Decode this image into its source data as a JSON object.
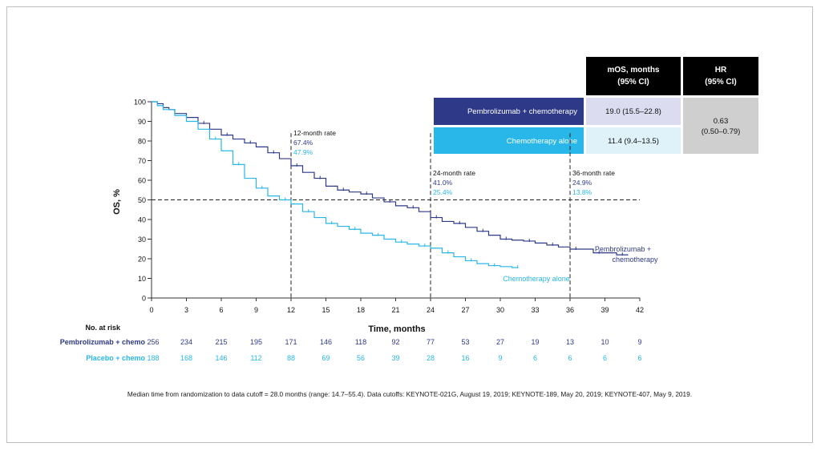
{
  "chart_data": {
    "type": "line",
    "title": "",
    "xlabel": "Time, months",
    "ylabel": "OS, %",
    "xlim": [
      0,
      42
    ],
    "ylim": [
      0,
      100
    ],
    "x_ticks": [
      "0",
      "3",
      "6",
      "9",
      "12",
      "15",
      "18",
      "21",
      "24",
      "27",
      "30",
      "33",
      "36",
      "39",
      "42"
    ],
    "y_ticks": [
      "0",
      "10",
      "20",
      "30",
      "40",
      "50",
      "60",
      "70",
      "80",
      "90",
      "100"
    ],
    "reference_line_y": 50,
    "colors": {
      "pembro": "#2e3a87",
      "chemo": "#29b6e8",
      "reference": "#000000"
    },
    "series": [
      {
        "name": "Pembrolizumab + chemotherapy",
        "label_lines": [
          "Pembrolizumab +",
          "chemotherapy"
        ],
        "color": "#2e3a87",
        "x": [
          0,
          0.5,
          1,
          1.5,
          2,
          3,
          4,
          5,
          6,
          7,
          8,
          9,
          10,
          11,
          12,
          13,
          14,
          15,
          16,
          17,
          18,
          19,
          20,
          21,
          22,
          23,
          24,
          25,
          26,
          27,
          28,
          29,
          30,
          31,
          32,
          33,
          34,
          35,
          36,
          37,
          38,
          39,
          40,
          41
        ],
        "y": [
          100,
          99,
          97,
          96,
          94,
          92,
          89,
          86,
          83,
          81,
          79,
          77,
          74,
          71,
          67.4,
          64,
          61,
          57,
          55,
          54,
          53,
          51,
          49,
          47,
          46,
          44,
          41,
          39,
          38,
          36,
          34,
          32,
          30,
          29.5,
          29,
          28,
          27,
          26,
          24.9,
          24.9,
          23,
          23,
          22,
          22
        ]
      },
      {
        "name": "Chemotherapy alone",
        "label_lines": [
          "Chemotherapy alone"
        ],
        "color": "#29b6e8",
        "x": [
          0,
          0.5,
          1,
          2,
          3,
          4,
          5,
          6,
          7,
          8,
          9,
          10,
          11,
          12,
          13,
          14,
          15,
          16,
          17,
          18,
          19,
          20,
          21,
          22,
          23,
          24,
          25,
          26,
          27,
          28,
          29,
          30,
          31,
          31.5
        ],
        "y": [
          100,
          98,
          96,
          93,
          90,
          86,
          81,
          75,
          68,
          61,
          56,
          52,
          50,
          47.9,
          44,
          41,
          38,
          36.5,
          35,
          33,
          32,
          30,
          28.5,
          27.5,
          26.5,
          25.4,
          23,
          21,
          19,
          17.5,
          16.5,
          16,
          15.5,
          15.5
        ]
      }
    ],
    "rate_annotations": [
      {
        "month": 12,
        "label": "12-month rate",
        "pembro": "67.4%",
        "chemo": "47.9%"
      },
      {
        "month": 24,
        "label": "24-month rate",
        "pembro": "41.0%",
        "chemo": "25.4%"
      },
      {
        "month": 36,
        "label": "36-month rate",
        "pembro": "24.9%",
        "chemo": "13.8%"
      }
    ],
    "legend_placement": "top-right table",
    "grid": false
  },
  "summary_table": {
    "col1_header": [
      "mOS, months",
      "(95% CI)"
    ],
    "col2_header": [
      "HR",
      "(95% CI)"
    ],
    "rows": [
      {
        "label": "Pembrolizumab + chemotherapy",
        "mos": "19.0 (15.5–22.8)"
      },
      {
        "label": "Chemotherapy alone",
        "mos": "11.4 (9.4–13.5)"
      }
    ],
    "hr": [
      "0.63",
      "(0.50–0.79)"
    ],
    "colors": {
      "header_bg": "#000000",
      "row1_bg": "#2e3a87",
      "row2_bg": "#29b6e8",
      "mos1_bg": "#dcdcf0",
      "mos2_bg": "#dff2fa",
      "hr_bg": "#cfcfcf"
    }
  },
  "risk_table": {
    "title": "No. at risk",
    "rows": [
      {
        "label": "Pembrolizumab + chemo",
        "color": "#2e3a87",
        "values": [
          "256",
          "234",
          "215",
          "195",
          "171",
          "146",
          "118",
          "92",
          "77",
          "53",
          "27",
          "19",
          "13",
          "10",
          "9"
        ]
      },
      {
        "label": "Placebo + chemo",
        "color": "#29b6e8",
        "values": [
          "188",
          "168",
          "146",
          "112",
          "88",
          "69",
          "56",
          "39",
          "28",
          "16",
          "9",
          "6",
          "6",
          "6",
          "6"
        ]
      }
    ]
  },
  "footnote": "Median time from randomization to data cutoff = 28.0 months (range: 14.7–55.4). Data cutoffs: KEYNOTE-021G, August 19, 2019; KEYNOTE-189, May 20, 2019; KEYNOTE-407, May 9, 2019."
}
